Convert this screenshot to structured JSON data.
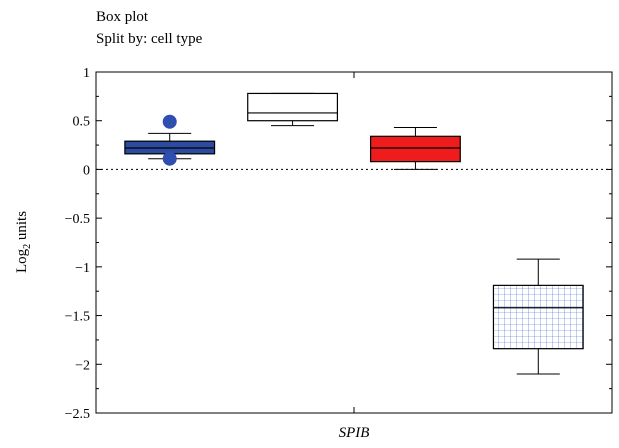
{
  "chart_data": {
    "type": "box",
    "title": "Box plot",
    "subtitle": "Split by: cell type",
    "ylabel_main": "Log",
    "ylabel_sub": "2",
    "ylabel_rest": " units",
    "xlabel": "SPIB",
    "ylim": [
      -2.5,
      1
    ],
    "yticks": [
      1,
      0.5,
      0,
      -0.5,
      -1,
      -1.5,
      -2,
      -2.5
    ],
    "ytick_labels": [
      "1",
      "0.5",
      "0",
      "−0.5",
      "−1",
      "−1.5",
      "−2",
      "−2.5"
    ],
    "reference_line": 0,
    "boxes": [
      {
        "whisker_low": 0.11,
        "q1": 0.16,
        "median": 0.22,
        "q3": 0.29,
        "whisker_high": 0.37,
        "outliers": [
          0.49,
          0.11
        ],
        "style": "solid",
        "fill": "#2b4aa0",
        "stroke": "#000000",
        "outlier_color": "#2f4fb0"
      },
      {
        "whisker_low": 0.45,
        "q1": 0.5,
        "median": 0.58,
        "q3": 0.78,
        "whisker_high": 0.78,
        "outliers": [],
        "style": "solid",
        "fill": "#ffffff",
        "stroke": "#000000"
      },
      {
        "whisker_low": 0.0,
        "q1": 0.08,
        "median": 0.22,
        "q3": 0.34,
        "whisker_high": 0.43,
        "outliers": [],
        "style": "solid",
        "fill": "#ee1c1c",
        "stroke": "#000000"
      },
      {
        "whisker_low": -2.1,
        "q1": -1.84,
        "median": -1.42,
        "q3": -1.19,
        "whisker_high": -0.92,
        "outliers": [],
        "style": "grid",
        "fill": "#ffffff",
        "stroke": "#000000",
        "grid_color": "#3a5fd0"
      }
    ]
  }
}
